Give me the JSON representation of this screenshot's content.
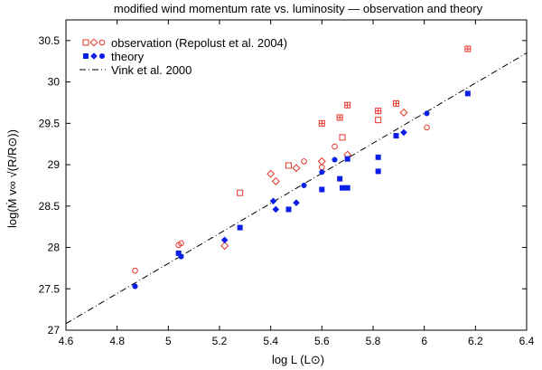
{
  "chart_data": {
    "type": "scatter",
    "title": "modified wind momentum rate vs. luminosity — observation and theory",
    "xlabel": "log L (L⊙)",
    "ylabel": "log(Ṁ v∞ √(R/R⊙))",
    "xlim": [
      4.6,
      6.4
    ],
    "ylim": [
      27,
      30.75
    ],
    "x_ticks": [
      "4.6",
      "4.8",
      "5",
      "5.2",
      "5.4",
      "5.6",
      "5.8",
      "6",
      "6.2",
      "6.4"
    ],
    "y_ticks": [
      "27",
      "27.5",
      "28",
      "28.5",
      "29",
      "29.5",
      "30",
      "30.5"
    ],
    "legend_position": "top-left",
    "colors": {
      "observation": "#e8342c",
      "theory": "#0a1ee6",
      "vink": "#000000"
    },
    "series": [
      {
        "name": "observation (Repolust et al. 2004)",
        "legend_label": "observation (Repolust et al. 2004)",
        "kind": "markers",
        "color": "#e8342c",
        "points": [
          {
            "x": 4.87,
            "y": 27.72,
            "marker": "circle"
          },
          {
            "x": 5.04,
            "y": 28.03,
            "marker": "circle"
          },
          {
            "x": 5.05,
            "y": 28.05,
            "marker": "circle"
          },
          {
            "x": 5.22,
            "y": 28.02,
            "marker": "diamond"
          },
          {
            "x": 5.28,
            "y": 28.66,
            "marker": "square"
          },
          {
            "x": 5.4,
            "y": 28.89,
            "marker": "diamond"
          },
          {
            "x": 5.42,
            "y": 28.8,
            "marker": "diamond"
          },
          {
            "x": 5.47,
            "y": 28.99,
            "marker": "square"
          },
          {
            "x": 5.5,
            "y": 28.96,
            "marker": "diamond"
          },
          {
            "x": 5.53,
            "y": 29.04,
            "marker": "circle"
          },
          {
            "x": 5.6,
            "y": 29.5,
            "marker": "square-plus"
          },
          {
            "x": 5.6,
            "y": 29.04,
            "marker": "diamond"
          },
          {
            "x": 5.6,
            "y": 28.97,
            "marker": "circle"
          },
          {
            "x": 5.65,
            "y": 29.22,
            "marker": "circle"
          },
          {
            "x": 5.67,
            "y": 29.57,
            "marker": "square-plus"
          },
          {
            "x": 5.68,
            "y": 29.33,
            "marker": "square"
          },
          {
            "x": 5.7,
            "y": 29.72,
            "marker": "square-plus"
          },
          {
            "x": 5.7,
            "y": 29.12,
            "marker": "diamond"
          },
          {
            "x": 5.82,
            "y": 29.65,
            "marker": "square-plus"
          },
          {
            "x": 5.82,
            "y": 29.54,
            "marker": "square"
          },
          {
            "x": 5.89,
            "y": 29.74,
            "marker": "square-plus"
          },
          {
            "x": 5.92,
            "y": 29.63,
            "marker": "diamond"
          },
          {
            "x": 6.01,
            "y": 29.45,
            "marker": "circle"
          },
          {
            "x": 6.17,
            "y": 30.4,
            "marker": "square-plus"
          }
        ]
      },
      {
        "name": "theory",
        "legend_label": "theory",
        "kind": "markers",
        "color": "#0a1ee6",
        "points": [
          {
            "x": 4.87,
            "y": 27.53,
            "marker": "filled-circle"
          },
          {
            "x": 5.04,
            "y": 27.93,
            "marker": "filled-square"
          },
          {
            "x": 5.05,
            "y": 27.89,
            "marker": "filled-circle"
          },
          {
            "x": 5.22,
            "y": 28.09,
            "marker": "filled-diamond"
          },
          {
            "x": 5.28,
            "y": 28.24,
            "marker": "filled-square"
          },
          {
            "x": 5.41,
            "y": 28.56,
            "marker": "filled-diamond"
          },
          {
            "x": 5.42,
            "y": 28.46,
            "marker": "filled-diamond"
          },
          {
            "x": 5.47,
            "y": 28.46,
            "marker": "filled-square"
          },
          {
            "x": 5.5,
            "y": 28.54,
            "marker": "filled-diamond"
          },
          {
            "x": 5.53,
            "y": 28.75,
            "marker": "filled-circle"
          },
          {
            "x": 5.6,
            "y": 28.91,
            "marker": "filled-circle"
          },
          {
            "x": 5.6,
            "y": 28.7,
            "marker": "filled-square"
          },
          {
            "x": 5.65,
            "y": 29.06,
            "marker": "filled-circle"
          },
          {
            "x": 5.67,
            "y": 28.83,
            "marker": "filled-square"
          },
          {
            "x": 5.68,
            "y": 28.72,
            "marker": "filled-square"
          },
          {
            "x": 5.7,
            "y": 28.72,
            "marker": "filled-square"
          },
          {
            "x": 5.7,
            "y": 29.07,
            "marker": "filled-square"
          },
          {
            "x": 5.82,
            "y": 29.09,
            "marker": "filled-square"
          },
          {
            "x": 5.82,
            "y": 28.92,
            "marker": "filled-square"
          },
          {
            "x": 5.89,
            "y": 29.35,
            "marker": "filled-square"
          },
          {
            "x": 5.92,
            "y": 29.39,
            "marker": "filled-diamond"
          },
          {
            "x": 6.01,
            "y": 29.62,
            "marker": "filled-circle"
          },
          {
            "x": 6.17,
            "y": 29.86,
            "marker": "filled-square"
          }
        ]
      },
      {
        "name": "Vink et al. 2000",
        "legend_label": "Vink et al. 2000",
        "kind": "line",
        "dash": "dash-dot",
        "color": "#000000",
        "x": [
          4.6,
          6.4
        ],
        "y": [
          27.08,
          30.35
        ]
      }
    ]
  }
}
